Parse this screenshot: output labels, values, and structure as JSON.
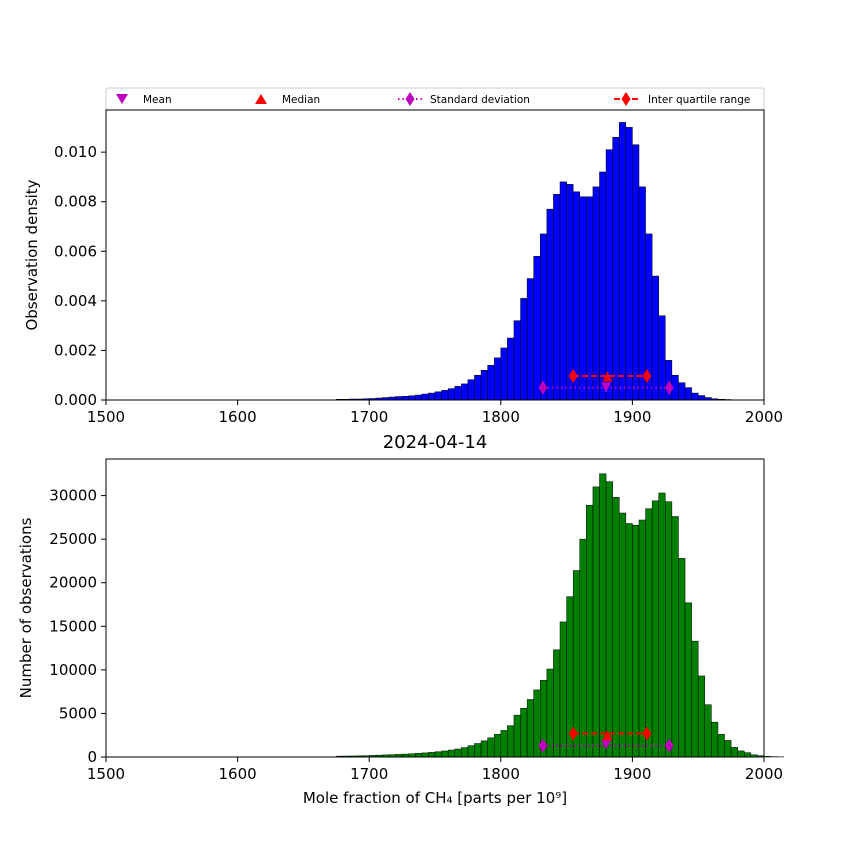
{
  "chart_data": [
    {
      "type": "bar",
      "title": "",
      "xlabel": "",
      "ylabel": "Observation density",
      "xlim": [
        1500,
        2000
      ],
      "ylim": [
        0,
        0.0117
      ],
      "xticks": [
        "1500",
        "1600",
        "1700",
        "1800",
        "1900",
        "2000"
      ],
      "yticks": [
        "0.000",
        "0.002",
        "0.004",
        "0.006",
        "0.008",
        "0.010"
      ],
      "xtick_values": [
        1500,
        1600,
        1700,
        1800,
        1900,
        2000
      ],
      "ytick_values": [
        0,
        0.002,
        0.004,
        0.006,
        0.008,
        0.01
      ],
      "bin_start": 1675,
      "bin_width": 5,
      "values": [
        3e-05,
        3e-05,
        4e-05,
        4e-05,
        5e-05,
        6e-05,
        8e-05,
        0.0001,
        0.00012,
        0.00014,
        0.00015,
        0.00017,
        0.0002,
        0.00024,
        0.00028,
        0.00033,
        0.00039,
        0.00046,
        0.00055,
        0.00065,
        0.00082,
        0.001,
        0.0012,
        0.0014,
        0.0017,
        0.0021,
        0.0025,
        0.0032,
        0.0041,
        0.0049,
        0.0058,
        0.0067,
        0.0077,
        0.0083,
        0.0088,
        0.0087,
        0.0084,
        0.0082,
        0.0082,
        0.0086,
        0.0092,
        0.0101,
        0.0106,
        0.0112,
        0.011,
        0.0103,
        0.0086,
        0.0067,
        0.005,
        0.0034,
        0.0016,
        0.001,
        0.0007,
        0.0005,
        0.00028,
        0.00018,
        0.0001,
        5e-05,
        3e-05,
        2e-05,
        1e-05,
        1e-05,
        1e-05,
        1e-05,
        0.0
      ],
      "bar_color": "#0000ff",
      "stats": {
        "mean": {
          "x": 1880,
          "y": 0.00051
        },
        "median": {
          "x": 1881,
          "y": 0.00095
        },
        "std": {
          "x": [
            1832,
            1928
          ],
          "y": 0.0005
        },
        "iqr": {
          "x": [
            1855,
            1911
          ],
          "y": 0.00097
        }
      }
    },
    {
      "type": "bar",
      "title": "2024-04-14",
      "xlabel": "Mole fraction of CH₄ [parts per 10⁹]",
      "ylabel": "Number of observations",
      "xlim": [
        1500,
        2000
      ],
      "ylim": [
        0,
        34200
      ],
      "xticks": [
        "1500",
        "1600",
        "1700",
        "1800",
        "1900",
        "2000"
      ],
      "yticks": [
        "0",
        "5000",
        "10000",
        "15000",
        "20000",
        "25000",
        "30000"
      ],
      "xtick_values": [
        1500,
        1600,
        1700,
        1800,
        1900,
        2000
      ],
      "ytick_values": [
        0,
        5000,
        10000,
        15000,
        20000,
        25000,
        30000
      ],
      "bin_start": 1675,
      "bin_width": 5,
      "values": [
        100,
        110,
        120,
        130,
        150,
        180,
        210,
        240,
        270,
        300,
        330,
        370,
        420,
        470,
        530,
        600,
        690,
        800,
        920,
        1080,
        1300,
        1550,
        1850,
        2200,
        2600,
        3050,
        3600,
        4800,
        5600,
        6600,
        7700,
        8800,
        10100,
        12300,
        15500,
        18400,
        21400,
        25000,
        28900,
        31000,
        32500,
        31600,
        29800,
        28000,
        26800,
        26600,
        27200,
        28500,
        29400,
        30300,
        29300,
        27600,
        22800,
        17700,
        13300,
        9300,
        6000,
        4000,
        2600,
        1900,
        1100,
        700,
        500,
        250,
        150,
        80,
        40,
        20
      ],
      "bar_color": "#008000",
      "stats": {
        "mean": {
          "x": 1880,
          "y": 1400
        },
        "median": {
          "x": 1881,
          "y": 2500
        },
        "std": {
          "x": [
            1832,
            1928
          ],
          "y": 1300
        },
        "iqr": {
          "x": [
            1855,
            1911
          ],
          "y": 2700
        }
      }
    }
  ],
  "legend": {
    "location": "top",
    "entries": [
      {
        "label": "Mean",
        "marker": "triangle-down",
        "color": "#bf00bf"
      },
      {
        "label": "Median",
        "marker": "triangle-up",
        "color": "#ff0000"
      },
      {
        "label": "Standard deviation",
        "marker": "diamond-dotted-line",
        "color": "#bf00bf"
      },
      {
        "label": "Inter quartile range",
        "marker": "diamond-dashed-line",
        "color": "#ff0000"
      }
    ]
  },
  "colors": {
    "mean": "#bf00bf",
    "median": "#ff0000",
    "std": "#bf00bf",
    "iqr": "#ff0000",
    "bar_edge": "#000000"
  }
}
